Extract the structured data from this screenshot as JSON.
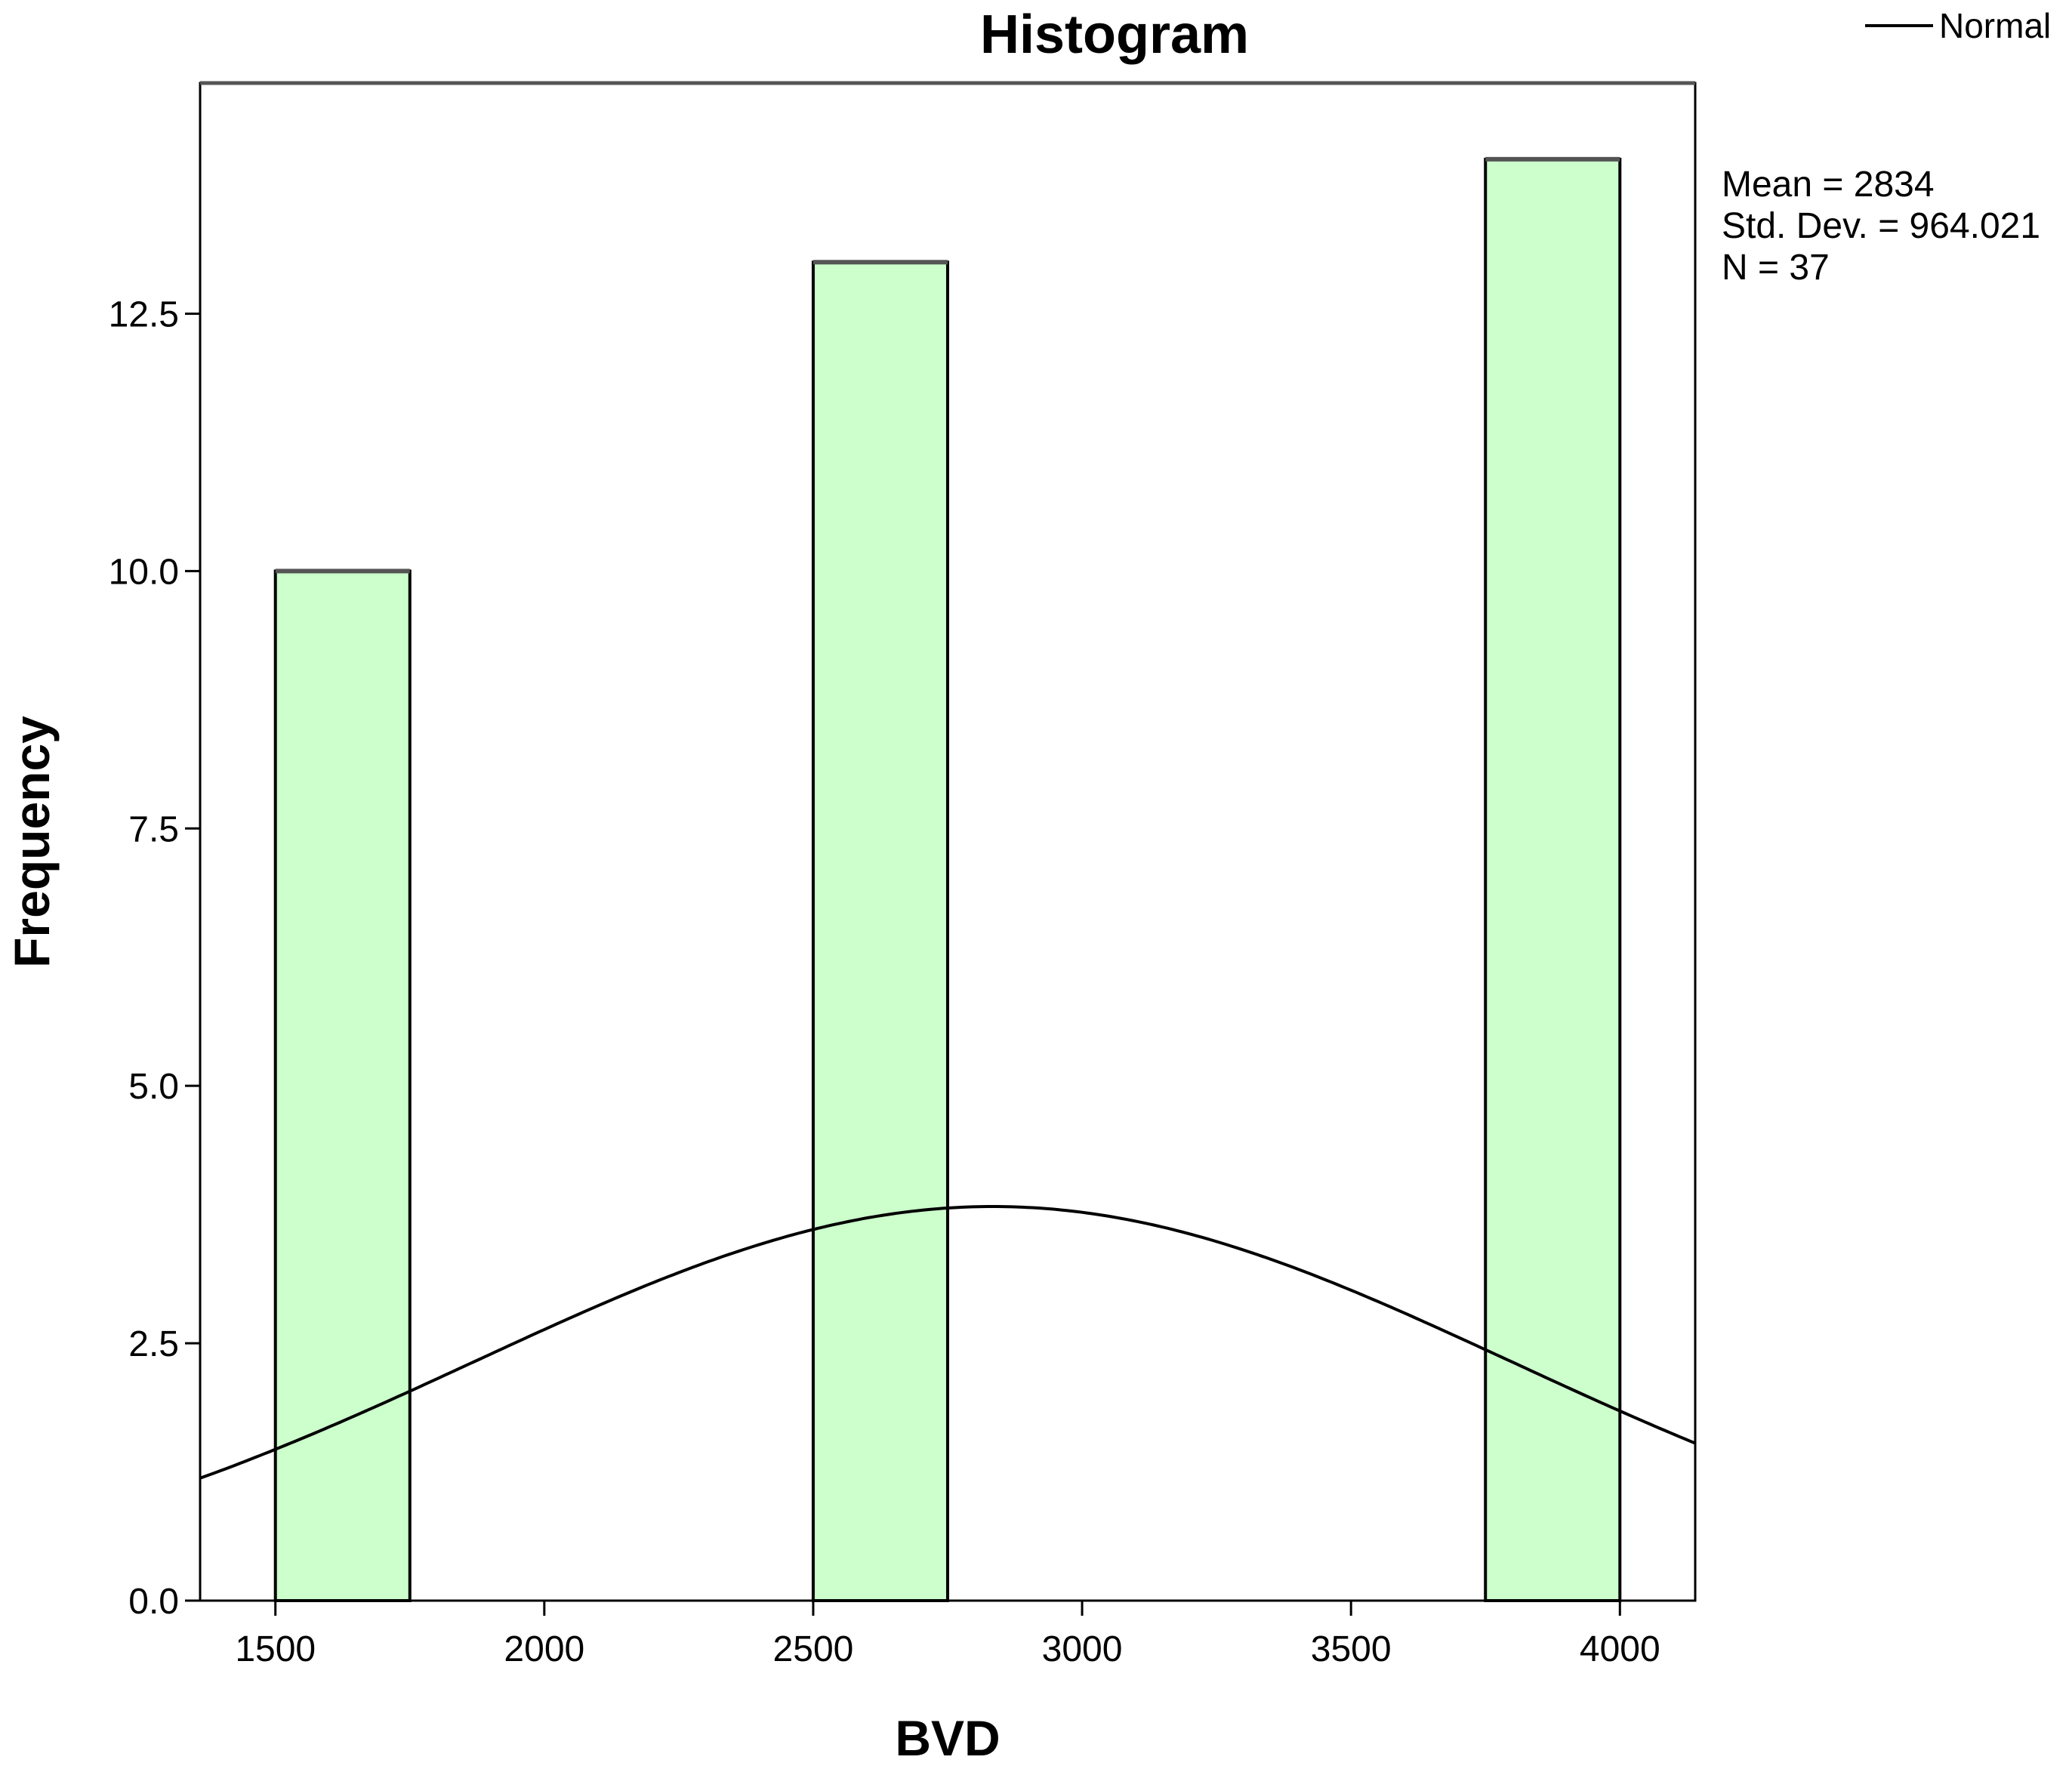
{
  "chart_data": {
    "type": "bar",
    "title": "Histogram",
    "xlabel": "BVD",
    "ylabel": "Frequency",
    "xlim": [
      1360,
      4140
    ],
    "ylim": [
      0,
      14.74
    ],
    "x_ticks": [
      1500,
      2000,
      2500,
      3000,
      3500,
      4000
    ],
    "x_tick_labels": [
      "1500",
      "2000",
      "2500",
      "3000",
      "3500",
      "4000"
    ],
    "y_ticks": [
      0,
      2.5,
      5,
      7.5,
      10,
      12.5
    ],
    "y_tick_labels": [
      "0.0",
      "2.5",
      "5.0",
      "7.5",
      "10.0",
      "12.5"
    ],
    "bins": [
      {
        "x_start": 1500,
        "x_end": 1750,
        "value": 10
      },
      {
        "x_start": 2500,
        "x_end": 2750,
        "value": 13
      },
      {
        "x_start": 3750,
        "x_end": 4000,
        "value": 14
      }
    ],
    "normal_curve": {
      "name": "Normal",
      "mean": 2834,
      "std_dev": 964.021,
      "n": 37,
      "bin_width": 250
    },
    "stats": [
      "Mean = 2834",
      "Std. Dev. = 964.021",
      "N = 37"
    ],
    "legend": {
      "entries": [
        "Normal"
      ],
      "position": "top-right"
    },
    "grid": false,
    "colors": {
      "bar_fill": "#ccffcc",
      "bar_stroke": "#000000",
      "curve": "#000000",
      "frame": "#000000"
    }
  }
}
